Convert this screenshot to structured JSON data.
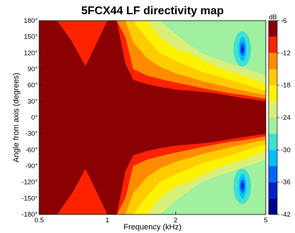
{
  "chart_data": {
    "type": "heatmap",
    "title": "5FCX44 LF directivity map",
    "xlabel": "Frequency (kHz)",
    "ylabel": "Angle from axis (degrees)",
    "x_scale": "log",
    "xlim": [
      0.5,
      5
    ],
    "ylim": [
      -180,
      180
    ],
    "x_ticks": [
      {
        "value": 0.5,
        "label": "0.5"
      },
      {
        "value": 1,
        "label": "1"
      },
      {
        "value": 2,
        "label": "2"
      },
      {
        "value": 5,
        "label": "5"
      }
    ],
    "y_ticks": [
      {
        "value": 180,
        "label": "180°"
      },
      {
        "value": 150,
        "label": "150°"
      },
      {
        "value": 120,
        "label": "120°"
      },
      {
        "value": 90,
        "label": "90°"
      },
      {
        "value": 60,
        "label": "60°"
      },
      {
        "value": 30,
        "label": "30°"
      },
      {
        "value": 0,
        "label": "0°"
      },
      {
        "value": -30,
        "label": "-30°"
      },
      {
        "value": -60,
        "label": "-60°"
      },
      {
        "value": -90,
        "label": "-90°"
      },
      {
        "value": -120,
        "label": "-120°"
      },
      {
        "value": -150,
        "label": "-150°"
      },
      {
        "value": -180,
        "label": "-180°"
      }
    ],
    "colorbar": {
      "unit": "dB",
      "range": [
        -42,
        -6
      ],
      "ticks": [
        {
          "value": -6,
          "label": "-6"
        },
        {
          "value": -12,
          "label": "-12"
        },
        {
          "value": -18,
          "label": "-18"
        },
        {
          "value": -24,
          "label": "-24"
        },
        {
          "value": -30,
          "label": "-30"
        },
        {
          "value": -36,
          "label": "-36"
        },
        {
          "value": -42,
          "label": "-42"
        }
      ],
      "levels": [
        {
          "from": -6,
          "to": -9,
          "color": "#8b0000"
        },
        {
          "from": -9,
          "to": -12,
          "color": "#ff2200"
        },
        {
          "from": -12,
          "to": -15,
          "color": "#ff8c00"
        },
        {
          "from": -15,
          "to": -18,
          "color": "#ffcc00"
        },
        {
          "from": -18,
          "to": -21,
          "color": "#fff200"
        },
        {
          "from": -21,
          "to": -24,
          "color": "#d8f07a"
        },
        {
          "from": -24,
          "to": -27,
          "color": "#a0f0a0"
        },
        {
          "from": -27,
          "to": -30,
          "color": "#40e0d0"
        },
        {
          "from": -30,
          "to": -33,
          "color": "#00bfff"
        },
        {
          "from": -33,
          "to": -36,
          "color": "#0066ff"
        },
        {
          "from": -36,
          "to": -39,
          "color": "#0020cc"
        },
        {
          "from": -39,
          "to": -42,
          "color": "#00008b"
        }
      ]
    },
    "contour_boundaries": {
      "note_angle_unit": "degrees (abs angle, symmetric about 0)",
      "frequencies_khz": [
        0.5,
        0.6,
        0.7,
        0.8,
        0.9,
        1.0,
        1.1,
        1.2,
        1.3,
        1.5,
        1.7,
        2.0,
        2.3,
        2.6,
        3.0,
        3.5,
        4.0,
        4.5,
        5.0
      ],
      "level_-9": [
        180,
        180,
        140,
        95,
        140,
        180,
        180,
        100,
        70,
        62,
        57,
        52,
        50,
        48,
        45,
        40,
        36,
        33,
        30
      ],
      "level_-12": [
        180,
        180,
        180,
        180,
        180,
        180,
        180,
        150,
        90,
        78,
        72,
        65,
        60,
        55,
        50,
        45,
        42,
        38,
        35
      ],
      "level_-15": [
        180,
        180,
        180,
        180,
        180,
        180,
        180,
        180,
        140,
        110,
        95,
        82,
        75,
        68,
        62,
        55,
        50,
        45,
        42
      ],
      "level_-18": [
        180,
        180,
        180,
        180,
        180,
        180,
        180,
        180,
        180,
        145,
        120,
        105,
        95,
        85,
        78,
        70,
        62,
        55,
        50
      ],
      "level_-21": [
        180,
        180,
        180,
        180,
        180,
        180,
        180,
        180,
        180,
        180,
        150,
        128,
        120,
        108,
        95,
        85,
        78,
        70,
        62
      ],
      "level_-24": [
        180,
        180,
        180,
        180,
        180,
        180,
        180,
        180,
        180,
        180,
        180,
        155,
        135,
        120,
        110,
        100,
        92,
        85,
        78
      ]
    }
  }
}
